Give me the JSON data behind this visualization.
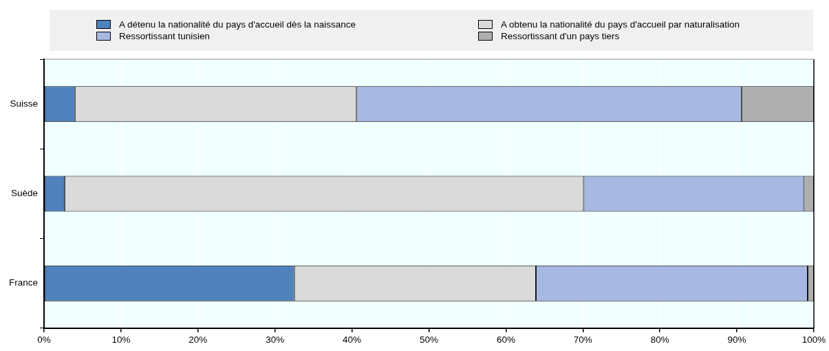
{
  "chart_data": {
    "type": "bar",
    "orientation": "horizontal",
    "stacked": true,
    "categories": [
      "Suisse",
      "Suède",
      "France"
    ],
    "series": [
      {
        "name": "A détenu la nationalité du pays d'accueil dès la naissance",
        "color": "#4f81bd",
        "values": [
          4.0,
          2.7,
          32.5
        ]
      },
      {
        "name": "A obtenu la nationalité du pays d'accueil par naturalisation",
        "color": "#dadada",
        "values": [
          36.6,
          67.4,
          31.4
        ]
      },
      {
        "name": "Ressortissant tunisien",
        "color": "#a7b8e2",
        "values": [
          50.0,
          28.6,
          35.3
        ]
      },
      {
        "name": "Ressortissant d'un pays tiers",
        "color": "#afafaf",
        "values": [
          9.4,
          1.3,
          0.8
        ]
      }
    ],
    "xlim": [
      0,
      100
    ],
    "xticks": [
      {
        "value": 0,
        "label": "0%"
      },
      {
        "value": 10,
        "label": "10%"
      },
      {
        "value": 20,
        "label": "20%"
      },
      {
        "value": 30,
        "label": "30%"
      },
      {
        "value": 40,
        "label": "40%"
      },
      {
        "value": 50,
        "label": "50%"
      },
      {
        "value": 60,
        "label": "60%"
      },
      {
        "value": 70,
        "label": "70%"
      },
      {
        "value": 80,
        "label": "80%"
      },
      {
        "value": 90,
        "label": "90%"
      },
      {
        "value": 100,
        "label": "100%"
      }
    ],
    "grid": "x",
    "legend": "top"
  }
}
